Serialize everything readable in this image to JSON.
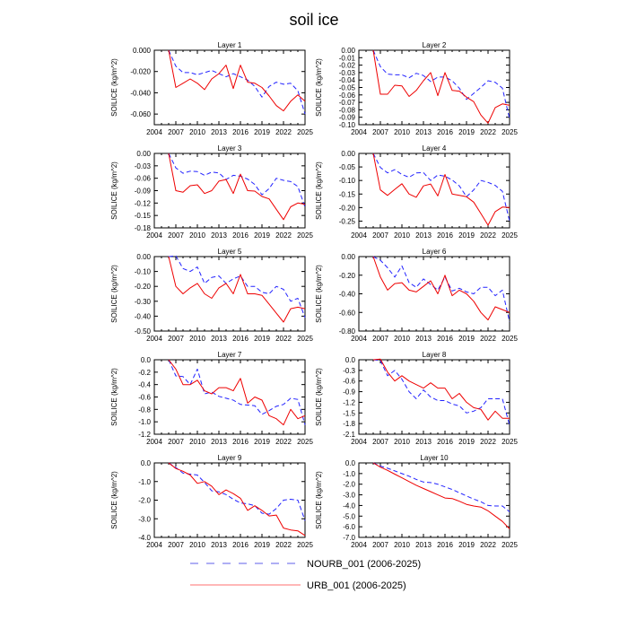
{
  "title": "soil ice",
  "x_ticks": [
    "2004",
    "2007",
    "2010",
    "2013",
    "2016",
    "2019",
    "2022",
    "2025"
  ],
  "legend": [
    {
      "label": "NOURB_001 (2006-2025)",
      "color": "#5f5fe8",
      "style": "dashed"
    },
    {
      "label": "URB_001 (2006-2025)",
      "color": "#ff6f6f",
      "style": "solid"
    }
  ],
  "series_colors": {
    "NOURB_001": "#2323ff",
    "URB_001": "#ee0000"
  },
  "chart_data": [
    {
      "type": "line",
      "title": "Layer 1",
      "ylabel": "SOILICE  (kg/m^2)",
      "xlim": [
        2004,
        2025
      ],
      "ylim": [
        -0.07,
        0
      ],
      "yticks": [
        "0.000",
        "-0.020",
        "-0.040",
        "-0.060"
      ],
      "ytick_values": [
        0,
        -0.02,
        -0.04,
        -0.06
      ],
      "x": [
        2006,
        2007,
        2008,
        2009,
        2010,
        2011,
        2012,
        2013,
        2014,
        2015,
        2016,
        2017,
        2018,
        2019,
        2020,
        2021,
        2022,
        2023,
        2024,
        2025
      ],
      "series": [
        {
          "name": "NOURB_001",
          "values": [
            0,
            -0.015,
            -0.021,
            -0.021,
            -0.023,
            -0.021,
            -0.019,
            -0.022,
            -0.025,
            -0.022,
            -0.025,
            -0.028,
            -0.034,
            -0.044,
            -0.034,
            -0.03,
            -0.032,
            -0.031,
            -0.038,
            -0.06
          ]
        },
        {
          "name": "URB_001",
          "values": [
            0,
            -0.035,
            -0.031,
            -0.027,
            -0.031,
            -0.037,
            -0.027,
            -0.022,
            -0.014,
            -0.036,
            -0.014,
            -0.03,
            -0.031,
            -0.035,
            -0.043,
            -0.052,
            -0.057,
            -0.048,
            -0.042,
            -0.048
          ]
        }
      ]
    },
    {
      "type": "line",
      "title": "Layer 2",
      "ylabel": "SOILICE  (kg/m^2)",
      "xlim": [
        2004,
        2025
      ],
      "ylim": [
        -0.1,
        0
      ],
      "yticks": [
        "0.00",
        "-0.01",
        "-0.02",
        "-0.03",
        "-0.04",
        "-0.05",
        "-0.06",
        "-0.07",
        "-0.08",
        "-0.09",
        "-0.10"
      ],
      "ytick_values": [
        0,
        -0.01,
        -0.02,
        -0.03,
        -0.04,
        -0.05,
        -0.06,
        -0.07,
        -0.08,
        -0.09,
        -0.1
      ],
      "x": [
        2006,
        2007,
        2008,
        2009,
        2010,
        2011,
        2012,
        2013,
        2014,
        2015,
        2016,
        2017,
        2018,
        2019,
        2020,
        2021,
        2022,
        2023,
        2024,
        2025
      ],
      "series": [
        {
          "name": "NOURB_001",
          "values": [
            0,
            -0.022,
            -0.032,
            -0.033,
            -0.033,
            -0.037,
            -0.031,
            -0.034,
            -0.042,
            -0.036,
            -0.036,
            -0.041,
            -0.051,
            -0.066,
            -0.058,
            -0.05,
            -0.041,
            -0.043,
            -0.051,
            -0.092
          ]
        },
        {
          "name": "URB_001",
          "values": [
            0,
            -0.059,
            -0.059,
            -0.047,
            -0.048,
            -0.062,
            -0.054,
            -0.041,
            -0.03,
            -0.061,
            -0.03,
            -0.054,
            -0.055,
            -0.063,
            -0.069,
            -0.087,
            -0.098,
            -0.077,
            -0.072,
            -0.074
          ]
        }
      ]
    },
    {
      "type": "line",
      "title": "Layer 3",
      "ylabel": "SOILICE  (kg/m^2)",
      "xlim": [
        2004,
        2025
      ],
      "ylim": [
        -0.18,
        0
      ],
      "yticks": [
        "0.00",
        "-0.03",
        "-0.06",
        "-0.09",
        "-0.12",
        "-0.15",
        "-0.18"
      ],
      "ytick_values": [
        0,
        -0.03,
        -0.06,
        -0.09,
        -0.12,
        -0.15,
        -0.18
      ],
      "x": [
        2006,
        2007,
        2008,
        2009,
        2010,
        2011,
        2012,
        2013,
        2014,
        2015,
        2016,
        2017,
        2018,
        2019,
        2020,
        2021,
        2022,
        2023,
        2024,
        2025
      ],
      "series": [
        {
          "name": "NOURB_001",
          "values": [
            0,
            -0.035,
            -0.048,
            -0.043,
            -0.044,
            -0.053,
            -0.045,
            -0.047,
            -0.063,
            -0.053,
            -0.055,
            -0.062,
            -0.075,
            -0.1,
            -0.085,
            -0.06,
            -0.065,
            -0.068,
            -0.08,
            -0.13
          ]
        },
        {
          "name": "URB_001",
          "values": [
            0,
            -0.09,
            -0.094,
            -0.078,
            -0.076,
            -0.097,
            -0.09,
            -0.067,
            -0.063,
            -0.097,
            -0.05,
            -0.09,
            -0.091,
            -0.104,
            -0.11,
            -0.135,
            -0.16,
            -0.129,
            -0.12,
            -0.123
          ]
        }
      ]
    },
    {
      "type": "line",
      "title": "Layer 4",
      "ylabel": "SOILICE  (kg/m^2)",
      "xlim": [
        2004,
        2025
      ],
      "ylim": [
        -0.275,
        0
      ],
      "yticks": [
        "0.00",
        "-0.05",
        "-0.10",
        "-0.15",
        "-0.20",
        "-0.25"
      ],
      "ytick_values": [
        0,
        -0.05,
        -0.1,
        -0.15,
        -0.2,
        -0.25
      ],
      "x": [
        2006,
        2007,
        2008,
        2009,
        2010,
        2011,
        2012,
        2013,
        2014,
        2015,
        2016,
        2017,
        2018,
        2019,
        2020,
        2021,
        2022,
        2023,
        2024,
        2025
      ],
      "series": [
        {
          "name": "NOURB_001",
          "values": [
            0,
            -0.052,
            -0.072,
            -0.06,
            -0.078,
            -0.088,
            -0.072,
            -0.071,
            -0.1,
            -0.08,
            -0.084,
            -0.098,
            -0.12,
            -0.16,
            -0.135,
            -0.1,
            -0.107,
            -0.118,
            -0.14,
            -0.25
          ]
        },
        {
          "name": "URB_001",
          "values": [
            0,
            -0.135,
            -0.155,
            -0.133,
            -0.112,
            -0.15,
            -0.162,
            -0.12,
            -0.113,
            -0.157,
            -0.078,
            -0.15,
            -0.155,
            -0.16,
            -0.18,
            -0.222,
            -0.265,
            -0.215,
            -0.198,
            -0.2
          ]
        }
      ]
    },
    {
      "type": "line",
      "title": "Layer 5",
      "ylabel": "SOILICE  (kg/m^2)",
      "xlim": [
        2004,
        2025
      ],
      "ylim": [
        -0.5,
        0
      ],
      "yticks": [
        "0.00",
        "-0.10",
        "-0.20",
        "-0.30",
        "-0.40",
        "-0.50"
      ],
      "ytick_values": [
        0,
        -0.1,
        -0.2,
        -0.3,
        -0.4,
        -0.5
      ],
      "x": [
        2006,
        2007,
        2008,
        2009,
        2010,
        2011,
        2012,
        2013,
        2014,
        2015,
        2016,
        2017,
        2018,
        2019,
        2020,
        2021,
        2022,
        2023,
        2024,
        2025
      ],
      "series": [
        {
          "name": "NOURB_001",
          "values": [
            0,
            0.005,
            -0.08,
            -0.1,
            -0.07,
            -0.18,
            -0.14,
            -0.13,
            -0.18,
            -0.15,
            -0.13,
            -0.2,
            -0.2,
            -0.24,
            -0.25,
            -0.2,
            -0.22,
            -0.3,
            -0.28,
            -0.41
          ]
        },
        {
          "name": "URB_001",
          "values": [
            0,
            -0.2,
            -0.25,
            -0.21,
            -0.18,
            -0.25,
            -0.28,
            -0.21,
            -0.18,
            -0.25,
            -0.12,
            -0.25,
            -0.25,
            -0.26,
            -0.32,
            -0.38,
            -0.44,
            -0.35,
            -0.34,
            -0.35
          ]
        }
      ]
    },
    {
      "type": "line",
      "title": "Layer 6",
      "ylabel": "SOILICE  (kg/m^2)",
      "xlim": [
        2004,
        2025
      ],
      "ylim": [
        -0.8,
        0
      ],
      "yticks": [
        "0.00",
        "-0.20",
        "-0.40",
        "-0.60",
        "-0.80"
      ],
      "ytick_values": [
        0,
        -0.2,
        -0.4,
        -0.6,
        -0.8
      ],
      "x": [
        2006,
        2007,
        2008,
        2009,
        2010,
        2011,
        2012,
        2013,
        2014,
        2015,
        2016,
        2017,
        2018,
        2019,
        2020,
        2021,
        2022,
        2023,
        2024,
        2025
      ],
      "series": [
        {
          "name": "NOURB_001",
          "values": [
            0,
            -0.04,
            -0.12,
            -0.22,
            -0.1,
            -0.28,
            -0.33,
            -0.24,
            -0.3,
            -0.36,
            -0.22,
            -0.37,
            -0.34,
            -0.38,
            -0.4,
            -0.33,
            -0.33,
            -0.42,
            -0.36,
            -0.7
          ]
        },
        {
          "name": "URB_001",
          "values": [
            0,
            -0.22,
            -0.36,
            -0.29,
            -0.28,
            -0.36,
            -0.38,
            -0.32,
            -0.26,
            -0.4,
            -0.2,
            -0.42,
            -0.36,
            -0.4,
            -0.48,
            -0.6,
            -0.68,
            -0.54,
            -0.57,
            -0.6
          ]
        }
      ]
    },
    {
      "type": "line",
      "title": "Layer 7",
      "ylabel": "SOILICE  (kg/m^2)",
      "xlim": [
        2004,
        2025
      ],
      "ylim": [
        -1.2,
        0
      ],
      "yticks": [
        "0.0",
        "-0.2",
        "-0.4",
        "-0.6",
        "-0.8",
        "-1.0",
        "-1.2"
      ],
      "ytick_values": [
        0,
        -0.2,
        -0.4,
        -0.6,
        -0.8,
        -1,
        -1.2
      ],
      "x": [
        2006,
        2007,
        2008,
        2009,
        2010,
        2011,
        2012,
        2013,
        2014,
        2015,
        2016,
        2017,
        2018,
        2019,
        2020,
        2021,
        2022,
        2023,
        2024,
        2025
      ],
      "series": [
        {
          "name": "NOURB_001",
          "values": [
            0,
            -0.26,
            -0.27,
            -0.4,
            -0.15,
            -0.55,
            -0.52,
            -0.59,
            -0.62,
            -0.65,
            -0.72,
            -0.73,
            -0.74,
            -0.88,
            -0.82,
            -0.75,
            -0.72,
            -0.62,
            -0.64,
            -1.05
          ]
        },
        {
          "name": "URB_001",
          "values": [
            0,
            -0.15,
            -0.4,
            -0.4,
            -0.33,
            -0.5,
            -0.55,
            -0.45,
            -0.45,
            -0.5,
            -0.3,
            -0.7,
            -0.6,
            -0.65,
            -0.9,
            -0.95,
            -1.05,
            -0.8,
            -0.95,
            -0.9
          ]
        }
      ]
    },
    {
      "type": "line",
      "title": "Layer 8",
      "ylabel": "SOILICE  (kg/m^2)",
      "xlim": [
        2004,
        2025
      ],
      "ylim": [
        -2.1,
        0
      ],
      "yticks": [
        "0.0",
        "-0.3",
        "-0.6",
        "-0.9",
        "-1.2",
        "-1.5",
        "-1.8",
        "-2.1"
      ],
      "ytick_values": [
        0,
        -0.3,
        -0.6,
        -0.9,
        -1.2,
        -1.5,
        -1.8,
        -2.1
      ],
      "x": [
        2006,
        2007,
        2008,
        2009,
        2010,
        2011,
        2012,
        2013,
        2014,
        2015,
        2016,
        2017,
        2018,
        2019,
        2020,
        2021,
        2022,
        2023,
        2024,
        2025
      ],
      "series": [
        {
          "name": "NOURB_001",
          "values": [
            0,
            -0.02,
            -0.45,
            -0.3,
            -0.55,
            -0.9,
            -1.1,
            -0.85,
            -1.05,
            -1.15,
            -1.15,
            -1.25,
            -1.3,
            -1.5,
            -1.45,
            -1.35,
            -1.1,
            -1.1,
            -1.1,
            -1.85
          ]
        },
        {
          "name": "URB_001",
          "values": [
            0,
            0.02,
            -0.35,
            -0.6,
            -0.45,
            -0.6,
            -0.7,
            -0.8,
            -0.65,
            -0.8,
            -0.8,
            -1.1,
            -0.95,
            -1.2,
            -1.35,
            -1.4,
            -1.7,
            -1.45,
            -1.65,
            -1.65
          ]
        }
      ]
    },
    {
      "type": "line",
      "title": "Layer 9",
      "ylabel": "SOILICE  (kg/m^2)",
      "xlim": [
        2004,
        2025
      ],
      "ylim": [
        -4,
        0
      ],
      "yticks": [
        "0.0",
        "-1.0",
        "-2.0",
        "-3.0",
        "-4.0"
      ],
      "ytick_values": [
        0,
        -1,
        -2,
        -3,
        -4
      ],
      "x": [
        2006,
        2007,
        2008,
        2009,
        2010,
        2011,
        2012,
        2013,
        2014,
        2015,
        2016,
        2017,
        2018,
        2019,
        2020,
        2021,
        2022,
        2023,
        2024,
        2025
      ],
      "series": [
        {
          "name": "NOURB_001",
          "values": [
            0,
            -0.25,
            -0.55,
            -0.6,
            -0.65,
            -1.05,
            -1.5,
            -1.55,
            -1.7,
            -1.95,
            -2.15,
            -2.2,
            -2.3,
            -2.7,
            -2.75,
            -2.45,
            -2.0,
            -1.95,
            -2.0,
            -3.1
          ]
        },
        {
          "name": "URB_001",
          "values": [
            0,
            -0.3,
            -0.45,
            -0.65,
            -1.1,
            -1.0,
            -1.25,
            -1.7,
            -1.45,
            -1.65,
            -1.9,
            -2.55,
            -2.3,
            -2.55,
            -2.85,
            -2.8,
            -3.5,
            -3.6,
            -3.65,
            -3.9
          ]
        }
      ]
    },
    {
      "type": "line",
      "title": "Layer 10",
      "ylabel": "SOILICE  (kg/m^2)",
      "xlim": [
        2004,
        2025
      ],
      "ylim": [
        -7,
        0
      ],
      "yticks": [
        "0.0",
        "-1.0",
        "-2.0",
        "-3.0",
        "-4.0",
        "-5.0",
        "-6.0",
        "-7.0"
      ],
      "ytick_values": [
        0,
        -1,
        -2,
        -3,
        -4,
        -5,
        -6,
        -7
      ],
      "x": [
        2006,
        2007,
        2008,
        2009,
        2010,
        2011,
        2012,
        2013,
        2014,
        2015,
        2016,
        2017,
        2018,
        2019,
        2020,
        2021,
        2022,
        2023,
        2024,
        2025
      ],
      "series": [
        {
          "name": "NOURB_001",
          "values": [
            0,
            -0.3,
            -0.5,
            -0.75,
            -1.0,
            -1.25,
            -1.55,
            -1.8,
            -1.85,
            -2.0,
            -2.25,
            -2.5,
            -2.8,
            -3.1,
            -3.4,
            -3.65,
            -4.0,
            -4.05,
            -4.05,
            -4.6
          ]
        },
        {
          "name": "URB_001",
          "values": [
            0,
            -0.4,
            -0.7,
            -1.05,
            -1.4,
            -1.75,
            -2.1,
            -2.4,
            -2.7,
            -3.0,
            -3.3,
            -3.35,
            -3.6,
            -3.9,
            -4.05,
            -4.15,
            -4.5,
            -5.0,
            -5.5,
            -6.2
          ]
        }
      ]
    }
  ]
}
